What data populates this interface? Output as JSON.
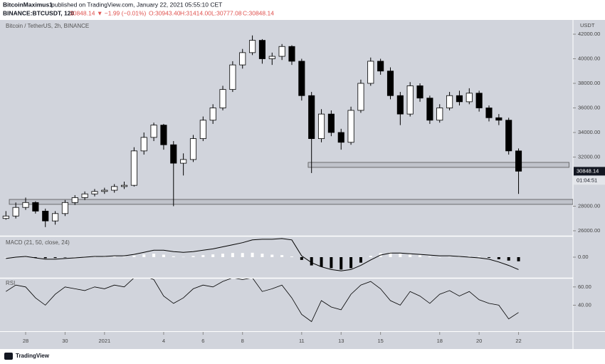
{
  "header": {
    "publisher": "BitcoinMaximus1",
    "published": "published on TradingView.com, January 22, 2021 05:55:10 CET",
    "symbol": "BINANCE:BTCUSDT, 120",
    "last": "30848.14",
    "change": "▼ −1.99 (−0.01%)",
    "open": "O:30943.40",
    "high": "H:31414.00",
    "low": "L:30777.08",
    "close": "C:30848.14"
  },
  "footer": {
    "brand": "TradingView"
  },
  "chart_data": [
    {
      "type": "candlestick",
      "title": "Bitcoin / TetherUS, 2h, BINANCE",
      "y_axis_label": "USDT",
      "x": [
        -1,
        -0.5,
        0,
        0.5,
        1,
        1.5,
        2,
        2.5,
        3,
        3.5,
        4,
        4.5,
        5,
        5.5,
        6,
        6.5,
        7,
        7.5,
        8,
        8.5,
        9,
        9.5,
        10,
        10.5,
        11,
        11.5,
        12,
        12.5,
        13,
        13.5,
        14,
        14.5,
        15,
        15.5,
        16,
        16.5,
        17,
        17.5,
        18,
        18.5,
        19,
        19.5,
        20,
        20.5,
        21,
        21.5,
        22,
        22.5,
        23,
        23.5,
        24,
        24.5,
        25
      ],
      "open": [
        27000,
        27200,
        27900,
        28300,
        27600,
        26800,
        27400,
        28300,
        28700,
        29000,
        29200,
        29300,
        29600,
        29700,
        32500,
        33600,
        34600,
        33000,
        31500,
        31800,
        33500,
        35000,
        36000,
        37500,
        39500,
        40500,
        41500,
        40000,
        40200,
        41000,
        39800,
        37000,
        33500,
        35500,
        34000,
        33200,
        35800,
        38000,
        39800,
        39000,
        37000,
        35500,
        37800,
        36800,
        35000,
        36000,
        37000,
        36500,
        37200,
        36000,
        35200,
        35000,
        32500
      ],
      "high": [
        27600,
        28300,
        28700,
        28400,
        27800,
        27600,
        28500,
        28900,
        29200,
        29400,
        29500,
        29800,
        30000,
        32800,
        34000,
        34800,
        34700,
        33300,
        32300,
        33800,
        35300,
        36300,
        37800,
        39800,
        40800,
        41900,
        41600,
        40500,
        41200,
        41100,
        40000,
        37300,
        35900,
        35800,
        34300,
        36100,
        38300,
        40100,
        40000,
        39300,
        37300,
        38100,
        38000,
        37000,
        36300,
        37300,
        37400,
        37600,
        37400,
        36200,
        35500,
        35200,
        32700
      ],
      "low": [
        26900,
        27000,
        27700,
        27400,
        26300,
        26500,
        27200,
        28100,
        28500,
        28800,
        29000,
        29100,
        29400,
        29600,
        32200,
        33300,
        32600,
        28000,
        30500,
        31600,
        33300,
        34700,
        35800,
        37300,
        39200,
        40300,
        39600,
        39500,
        39900,
        39500,
        36600,
        30700,
        33200,
        33700,
        32600,
        33000,
        35600,
        37800,
        38700,
        36700,
        34600,
        35300,
        36500,
        34700,
        34800,
        35800,
        36200,
        36300,
        35700,
        34900,
        34600,
        32200,
        29000
      ],
      "close": [
        27200,
        27900,
        28300,
        27600,
        26800,
        27400,
        28300,
        28700,
        29000,
        29200,
        29300,
        29600,
        29700,
        32500,
        33600,
        34600,
        33000,
        31500,
        31800,
        33500,
        35000,
        36000,
        37500,
        39500,
        40500,
        41500,
        40000,
        40200,
        41000,
        39800,
        37000,
        33500,
        35500,
        34000,
        33200,
        35800,
        38000,
        39800,
        39000,
        37000,
        35500,
        37800,
        36800,
        35000,
        36000,
        37000,
        36500,
        37200,
        36000,
        35200,
        35000,
        32500,
        30848.14
      ],
      "xlim": [
        -1.12,
        27.76
      ],
      "xticks": [
        {
          "value": 0,
          "label": "28"
        },
        {
          "value": 2,
          "label": "30"
        },
        {
          "value": 4,
          "label": "2021"
        },
        {
          "value": 7,
          "label": "4"
        },
        {
          "value": 9,
          "label": "6"
        },
        {
          "value": 11,
          "label": "8"
        },
        {
          "value": 14,
          "label": "11"
        },
        {
          "value": 16,
          "label": "13"
        },
        {
          "value": 18,
          "label": "15"
        },
        {
          "value": 21,
          "label": "18"
        },
        {
          "value": 23,
          "label": "20"
        },
        {
          "value": 25,
          "label": "22"
        }
      ],
      "ylim": [
        25650,
        43160
      ],
      "yticks": [
        {
          "value": 26000,
          "label": "26000.00"
        },
        {
          "value": 28000,
          "label": "28000.00"
        },
        {
          "value": 32000,
          "label": "32000.00"
        },
        {
          "value": 34000,
          "label": "34000.00"
        },
        {
          "value": 36000,
          "label": "36000.00"
        },
        {
          "value": 38000,
          "label": "38000.00"
        },
        {
          "value": 40000,
          "label": "40000.00"
        },
        {
          "value": 42000,
          "label": "42000.00"
        }
      ],
      "zones": [
        {
          "x0": 14.33,
          "x1": 27.56,
          "low": 31160,
          "high": 31565
        },
        {
          "x0": -0.83,
          "x1": 27.76,
          "low": 28150,
          "high": 28550
        }
      ],
      "last_price_label": "30848.14",
      "countdown": "01:04:51",
      "up_color": "#ffffff",
      "down_color": "#000000",
      "wick_color": "#000000",
      "zone_color": "#b2b5be"
    },
    {
      "type": "macd",
      "title": "MACD (21, 50, close, 24)",
      "macd": [
        -100,
        0,
        50,
        -50,
        -150,
        -150,
        -100,
        -50,
        0,
        50,
        50,
        100,
        100,
        200,
        350,
        500,
        500,
        400,
        350,
        400,
        500,
        600,
        750,
        900,
        1050,
        1250,
        1300,
        1300,
        1350,
        1250,
        100,
        -400,
        -700,
        -900,
        -1000,
        -900,
        -600,
        -200,
        150,
        300,
        300,
        250,
        200,
        150,
        100,
        100,
        50,
        0,
        -50,
        -150,
        -350,
        -600,
        -900
      ],
      "histogram": [
        0,
        20,
        40,
        -20,
        -80,
        -60,
        -20,
        10,
        40,
        60,
        50,
        60,
        50,
        120,
        200,
        250,
        180,
        60,
        20,
        80,
        150,
        200,
        250,
        300,
        300,
        320,
        250,
        180,
        150,
        50,
        -200,
        -600,
        -700,
        -800,
        -900,
        -800,
        -400,
        100,
        300,
        350,
        250,
        200,
        150,
        50,
        0,
        20,
        50,
        80,
        50,
        -50,
        -150,
        -250,
        -300
      ],
      "ylim": [
        -1500,
        1500
      ],
      "yticks": [
        {
          "value": 0,
          "label": "0.00"
        }
      ],
      "line_color": "#000000",
      "up_color": "#ffffff",
      "down_color": "#000000"
    },
    {
      "type": "line",
      "title": "RSI",
      "values": [
        55,
        62,
        60,
        48,
        40,
        52,
        60,
        58,
        56,
        60,
        58,
        62,
        60,
        70,
        72,
        68,
        50,
        42,
        48,
        58,
        62,
        60,
        66,
        70,
        68,
        70,
        55,
        58,
        62,
        48,
        30,
        22,
        45,
        38,
        35,
        52,
        62,
        66,
        58,
        45,
        40,
        55,
        50,
        42,
        52,
        56,
        50,
        55,
        46,
        42,
        40,
        25,
        32
      ],
      "ylim": [
        11.5,
        69.2
      ],
      "yticks": [
        {
          "value": 60,
          "label": "60.00"
        },
        {
          "value": 40,
          "label": "40.00"
        }
      ],
      "color": "#000000"
    }
  ]
}
